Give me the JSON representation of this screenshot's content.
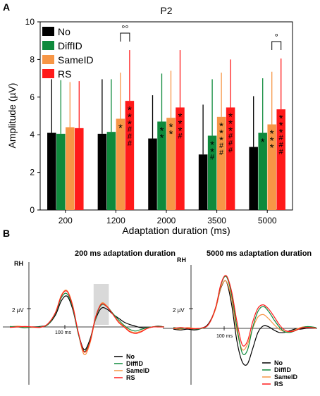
{
  "panel_a": {
    "letter": "A"
  },
  "panel_b": {
    "letter": "B"
  },
  "colors": {
    "No": "#000000",
    "DiffID": "#0f8a3c",
    "SameID": "#f79646",
    "RS": "#ff1a1a"
  },
  "chart_data": [
    {
      "type": "bar",
      "title": "P2",
      "xlabel": "Adaptation duration (ms)",
      "ylabel": "Amplitude (µV)",
      "ylim": [
        0,
        10
      ],
      "yticks": [
        0,
        2,
        4,
        6,
        8,
        10
      ],
      "grid": false,
      "legend": "top-left",
      "categories": [
        "200",
        "1200",
        "2000",
        "3500",
        "5000"
      ],
      "series": [
        {
          "name": "No",
          "values": [
            4.1,
            4.05,
            3.8,
            2.95,
            3.35
          ],
          "error_upper": [
            6.95,
            6.95,
            6.1,
            5.6,
            6.05
          ]
        },
        {
          "name": "DiffID",
          "values": [
            4.05,
            4.15,
            4.7,
            3.95,
            4.1
          ],
          "error_upper": [
            6.9,
            6.95,
            7.25,
            6.95,
            7.0
          ]
        },
        {
          "name": "SameID",
          "values": [
            4.4,
            4.85,
            4.9,
            4.95,
            4.55
          ],
          "error_upper": [
            6.8,
            7.3,
            7.4,
            7.3,
            7.35
          ]
        },
        {
          "name": "RS",
          "values": [
            4.35,
            5.8,
            5.45,
            5.45,
            5.35
          ],
          "error_upper": [
            6.85,
            8.5,
            8.5,
            8.0,
            8.05
          ]
        }
      ],
      "annotations": [
        {
          "category": "1200",
          "series": "SameID",
          "text": "*"
        },
        {
          "category": "1200",
          "series": "RS",
          "text": "***\n###"
        },
        {
          "category": "2000",
          "series": "DiffID",
          "text": "**"
        },
        {
          "category": "2000",
          "series": "SameID",
          "text": "**"
        },
        {
          "category": "2000",
          "series": "RS",
          "text": "***\n#"
        },
        {
          "category": "3500",
          "series": "DiffID",
          "text": "**\n#"
        },
        {
          "category": "3500",
          "series": "SameID",
          "text": "***\n##"
        },
        {
          "category": "3500",
          "series": "RS",
          "text": "***\n###"
        },
        {
          "category": "5000",
          "series": "DiffID",
          "text": "*"
        },
        {
          "category": "5000",
          "series": "SameID",
          "text": "***"
        },
        {
          "category": "5000",
          "series": "RS",
          "text": "***\n###"
        }
      ],
      "brackets": [
        {
          "category": "1200",
          "from": "SameID",
          "to": "RS",
          "text": "°°"
        },
        {
          "category": "5000",
          "from": "SameID",
          "to": "RS",
          "text": "°"
        }
      ]
    },
    {
      "type": "line",
      "title": "200 ms adaptation duration",
      "channel": "RH",
      "scale_label": "2 µV",
      "time_label": "100 ms",
      "highlight_window": [
        170,
        210
      ],
      "x": [
        -50,
        -30,
        -10,
        10,
        30,
        50,
        70,
        85,
        100,
        115,
        130,
        145,
        160,
        175,
        190,
        205,
        220,
        235,
        250,
        265,
        280,
        295,
        310,
        325,
        340,
        355
      ],
      "series": [
        {
          "name": "No",
          "values": [
            0,
            0.05,
            -0.05,
            0,
            0.05,
            0.3,
            1.5,
            3.2,
            3.8,
            2.2,
            -0.8,
            -2.8,
            -1.6,
            0.9,
            2.3,
            2.2,
            1.6,
            1.1,
            0.6,
            0.3,
            0.1,
            -0.1,
            -0.1,
            0,
            0.1,
            0
          ]
        },
        {
          "name": "DiffID",
          "values": [
            0.05,
            0,
            -0.1,
            0,
            0,
            0.3,
            1.7,
            3.6,
            4.1,
            2.4,
            -0.9,
            -3.0,
            -1.8,
            1.1,
            2.7,
            2.5,
            1.7,
            0.9,
            0.2,
            -0.3,
            -0.5,
            -0.3,
            -0.1,
            0,
            0.05,
            0
          ]
        },
        {
          "name": "SameID",
          "values": [
            0,
            0.1,
            0,
            -0.05,
            0,
            0.3,
            1.8,
            3.9,
            4.5,
            2.7,
            -0.8,
            -3.4,
            -2.1,
            1.0,
            2.9,
            2.6,
            1.6,
            0.7,
            0.1,
            -0.5,
            -0.7,
            -0.5,
            -0.2,
            0,
            0.05,
            0
          ]
        },
        {
          "name": "RS",
          "values": [
            -0.05,
            0,
            0.05,
            0,
            -0.05,
            0.4,
            1.8,
            3.8,
            4.4,
            2.6,
            -0.7,
            -3.1,
            -1.9,
            1.2,
            2.8,
            2.5,
            1.6,
            0.6,
            0.0,
            -0.6,
            -0.8,
            -0.6,
            -0.2,
            0,
            0,
            0
          ]
        }
      ],
      "legend": "bottom-right"
    },
    {
      "type": "line",
      "title": "5000 ms adaptation duration",
      "channel": "RH",
      "scale_label": "2 µV",
      "time_label": "100 ms",
      "x": [
        -50,
        -30,
        -10,
        10,
        30,
        50,
        70,
        85,
        100,
        115,
        130,
        145,
        160,
        175,
        190,
        205,
        220,
        235,
        250,
        265,
        280,
        295,
        310,
        325,
        340,
        355
      ],
      "series": [
        {
          "name": "No",
          "values": [
            -0.1,
            -0.2,
            -0.1,
            -0.2,
            0,
            0.6,
            2.5,
            5.0,
            5.8,
            3.0,
            -1.5,
            -4.1,
            -4.4,
            -2.5,
            -0.5,
            0.3,
            0.2,
            -0.2,
            -0.5,
            -0.5,
            -0.3,
            -0.1,
            -0.1,
            0,
            0.1,
            0
          ]
        },
        {
          "name": "DiffID",
          "values": [
            0.1,
            0,
            0,
            -0.1,
            0,
            0.5,
            2.6,
            5.4,
            6.4,
            4.2,
            0.2,
            -3.0,
            -2.7,
            0.1,
            2.1,
            2.7,
            2.1,
            1.1,
            0.2,
            -0.4,
            -0.5,
            -0.3,
            0,
            0.2,
            0.2,
            0.1
          ]
        },
        {
          "name": "SameID",
          "values": [
            0,
            -0.1,
            0.1,
            0,
            0,
            0.5,
            2.4,
            5.1,
            5.8,
            3.7,
            -0.3,
            -2.6,
            -2.0,
            0.0,
            1.4,
            1.7,
            1.2,
            0.5,
            -0.1,
            -0.4,
            -0.4,
            -0.2,
            0.1,
            0.2,
            0.1,
            0
          ]
        },
        {
          "name": "RS",
          "values": [
            0,
            0.1,
            0,
            -0.05,
            0.05,
            0.5,
            2.6,
            5.5,
            6.5,
            4.6,
            0.9,
            -2.0,
            -1.6,
            0.8,
            2.5,
            2.9,
            2.4,
            1.5,
            0.5,
            -0.2,
            -0.4,
            -0.3,
            0,
            0.1,
            0.1,
            0
          ]
        }
      ],
      "legend": "bottom-right"
    }
  ]
}
